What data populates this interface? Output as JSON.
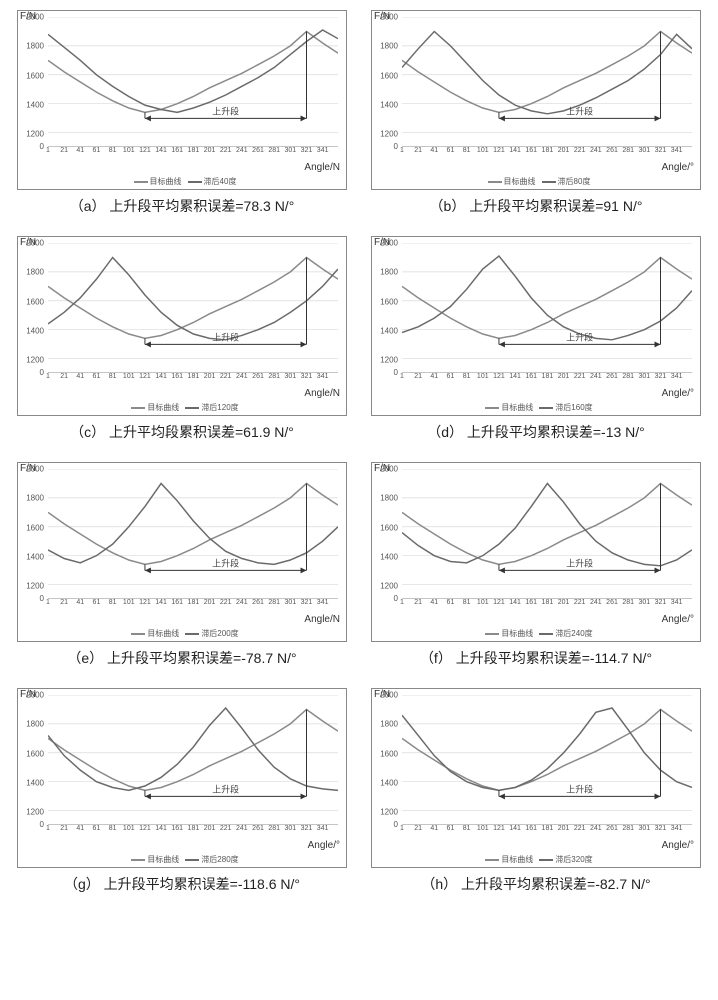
{
  "common": {
    "y_label": "F/N",
    "rising_label": "上升段",
    "legend_target": "目标曲线",
    "x_ticks": [
      1,
      21,
      41,
      61,
      81,
      101,
      121,
      141,
      161,
      181,
      201,
      221,
      241,
      261,
      281,
      301,
      321,
      341
    ],
    "y_ticks": [
      0,
      1200,
      1400,
      1600,
      1800,
      2000
    ],
    "ylim": [
      1100,
      2000
    ],
    "xlim": [
      1,
      360
    ],
    "grid_color": "#d9d9d9",
    "axis_color": "#888888",
    "background": "#ffffff",
    "target_color": "#8a8a8a",
    "lag_color": "#6a6a6a",
    "target_curve": [
      [
        1,
        1700
      ],
      [
        21,
        1620
      ],
      [
        41,
        1550
      ],
      [
        61,
        1480
      ],
      [
        81,
        1420
      ],
      [
        101,
        1370
      ],
      [
        121,
        1340
      ],
      [
        141,
        1360
      ],
      [
        161,
        1400
      ],
      [
        181,
        1450
      ],
      [
        201,
        1510
      ],
      [
        221,
        1560
      ],
      [
        241,
        1610
      ],
      [
        261,
        1670
      ],
      [
        281,
        1730
      ],
      [
        301,
        1800
      ],
      [
        321,
        1900
      ],
      [
        341,
        1820
      ],
      [
        360,
        1750
      ]
    ],
    "rising_range": [
      121,
      321
    ]
  },
  "panels": [
    {
      "id": "a",
      "caption": "（a） 上升段平均累积误差=78.3 N/°",
      "x_label": "Angle/N",
      "lag_label": "滞后40度",
      "lag_curve": [
        [
          1,
          1880
        ],
        [
          21,
          1790
        ],
        [
          41,
          1700
        ],
        [
          61,
          1600
        ],
        [
          81,
          1520
        ],
        [
          101,
          1450
        ],
        [
          121,
          1390
        ],
        [
          141,
          1360
        ],
        [
          161,
          1340
        ],
        [
          181,
          1370
        ],
        [
          201,
          1410
        ],
        [
          221,
          1460
        ],
        [
          241,
          1520
        ],
        [
          261,
          1580
        ],
        [
          281,
          1650
        ],
        [
          301,
          1740
        ],
        [
          321,
          1830
        ],
        [
          341,
          1910
        ],
        [
          360,
          1850
        ]
      ]
    },
    {
      "id": "b",
      "caption": "（b） 上升段平均累积误差=91 N/°",
      "x_label": "Angle/°",
      "lag_label": "滞后80度",
      "lag_curve": [
        [
          1,
          1650
        ],
        [
          21,
          1780
        ],
        [
          41,
          1900
        ],
        [
          61,
          1800
        ],
        [
          81,
          1680
        ],
        [
          101,
          1560
        ],
        [
          121,
          1460
        ],
        [
          141,
          1390
        ],
        [
          161,
          1350
        ],
        [
          181,
          1330
        ],
        [
          201,
          1350
        ],
        [
          221,
          1390
        ],
        [
          241,
          1440
        ],
        [
          261,
          1500
        ],
        [
          281,
          1560
        ],
        [
          301,
          1640
        ],
        [
          321,
          1740
        ],
        [
          341,
          1880
        ],
        [
          360,
          1780
        ]
      ]
    },
    {
      "id": "c",
      "caption": "（c） 上升平均段累积误差=61.9 N/°",
      "x_label": "Angle/N",
      "lag_label": "滞后120度",
      "lag_curve": [
        [
          1,
          1440
        ],
        [
          21,
          1520
        ],
        [
          41,
          1620
        ],
        [
          61,
          1750
        ],
        [
          81,
          1900
        ],
        [
          101,
          1780
        ],
        [
          121,
          1640
        ],
        [
          141,
          1520
        ],
        [
          161,
          1430
        ],
        [
          181,
          1370
        ],
        [
          201,
          1340
        ],
        [
          221,
          1330
        ],
        [
          241,
          1360
        ],
        [
          261,
          1400
        ],
        [
          281,
          1450
        ],
        [
          301,
          1520
        ],
        [
          321,
          1600
        ],
        [
          341,
          1700
        ],
        [
          360,
          1820
        ]
      ]
    },
    {
      "id": "d",
      "caption": "（d） 上升段平均累积误差=-13 N/°",
      "x_label": "Angle/°",
      "lag_label": "滞后160度",
      "lag_curve": [
        [
          1,
          1380
        ],
        [
          21,
          1420
        ],
        [
          41,
          1480
        ],
        [
          61,
          1560
        ],
        [
          81,
          1680
        ],
        [
          101,
          1820
        ],
        [
          121,
          1910
        ],
        [
          141,
          1770
        ],
        [
          161,
          1620
        ],
        [
          181,
          1500
        ],
        [
          201,
          1420
        ],
        [
          221,
          1370
        ],
        [
          241,
          1340
        ],
        [
          261,
          1330
        ],
        [
          281,
          1360
        ],
        [
          301,
          1400
        ],
        [
          321,
          1460
        ],
        [
          341,
          1550
        ],
        [
          360,
          1670
        ]
      ]
    },
    {
      "id": "e",
      "caption": "（e） 上升段平均累积误差=-78.7 N/°",
      "x_label": "Angle/N",
      "lag_label": "滞后200度",
      "lag_curve": [
        [
          1,
          1440
        ],
        [
          21,
          1380
        ],
        [
          41,
          1350
        ],
        [
          61,
          1400
        ],
        [
          81,
          1480
        ],
        [
          101,
          1600
        ],
        [
          121,
          1740
        ],
        [
          141,
          1900
        ],
        [
          161,
          1780
        ],
        [
          181,
          1640
        ],
        [
          201,
          1520
        ],
        [
          221,
          1430
        ],
        [
          241,
          1380
        ],
        [
          261,
          1350
        ],
        [
          281,
          1340
        ],
        [
          301,
          1370
        ],
        [
          321,
          1420
        ],
        [
          341,
          1500
        ],
        [
          360,
          1600
        ]
      ]
    },
    {
      "id": "f",
      "caption": "（f） 上升段平均累积误差=-114.7 N/°",
      "x_label": "Angle/°",
      "lag_label": "滞后240度",
      "lag_curve": [
        [
          1,
          1560
        ],
        [
          21,
          1470
        ],
        [
          41,
          1400
        ],
        [
          61,
          1360
        ],
        [
          81,
          1350
        ],
        [
          101,
          1400
        ],
        [
          121,
          1480
        ],
        [
          141,
          1590
        ],
        [
          161,
          1740
        ],
        [
          181,
          1900
        ],
        [
          201,
          1770
        ],
        [
          221,
          1620
        ],
        [
          241,
          1500
        ],
        [
          261,
          1420
        ],
        [
          281,
          1370
        ],
        [
          301,
          1340
        ],
        [
          321,
          1330
        ],
        [
          341,
          1370
        ],
        [
          360,
          1440
        ]
      ]
    },
    {
      "id": "g",
      "caption": "（g） 上升段平均累积误差=-118.6 N/°",
      "x_label": "Angle/°",
      "lag_label": "滞后280度",
      "lag_curve": [
        [
          1,
          1720
        ],
        [
          21,
          1580
        ],
        [
          41,
          1480
        ],
        [
          61,
          1400
        ],
        [
          81,
          1360
        ],
        [
          101,
          1340
        ],
        [
          121,
          1370
        ],
        [
          141,
          1430
        ],
        [
          161,
          1520
        ],
        [
          181,
          1640
        ],
        [
          201,
          1790
        ],
        [
          221,
          1910
        ],
        [
          241,
          1770
        ],
        [
          261,
          1620
        ],
        [
          281,
          1500
        ],
        [
          301,
          1420
        ],
        [
          321,
          1370
        ],
        [
          341,
          1350
        ],
        [
          360,
          1340
        ]
      ]
    },
    {
      "id": "h",
      "caption": "（h） 上升段平均累积误差=-82.7 N/°",
      "x_label": "Angle/°",
      "lag_label": "滞后320度",
      "lag_curve": [
        [
          1,
          1860
        ],
        [
          21,
          1720
        ],
        [
          41,
          1580
        ],
        [
          61,
          1470
        ],
        [
          81,
          1400
        ],
        [
          101,
          1360
        ],
        [
          121,
          1340
        ],
        [
          141,
          1360
        ],
        [
          161,
          1410
        ],
        [
          181,
          1490
        ],
        [
          201,
          1600
        ],
        [
          221,
          1730
        ],
        [
          241,
          1880
        ],
        [
          261,
          1910
        ],
        [
          281,
          1760
        ],
        [
          301,
          1600
        ],
        [
          321,
          1480
        ],
        [
          341,
          1400
        ],
        [
          360,
          1360
        ]
      ]
    }
  ]
}
